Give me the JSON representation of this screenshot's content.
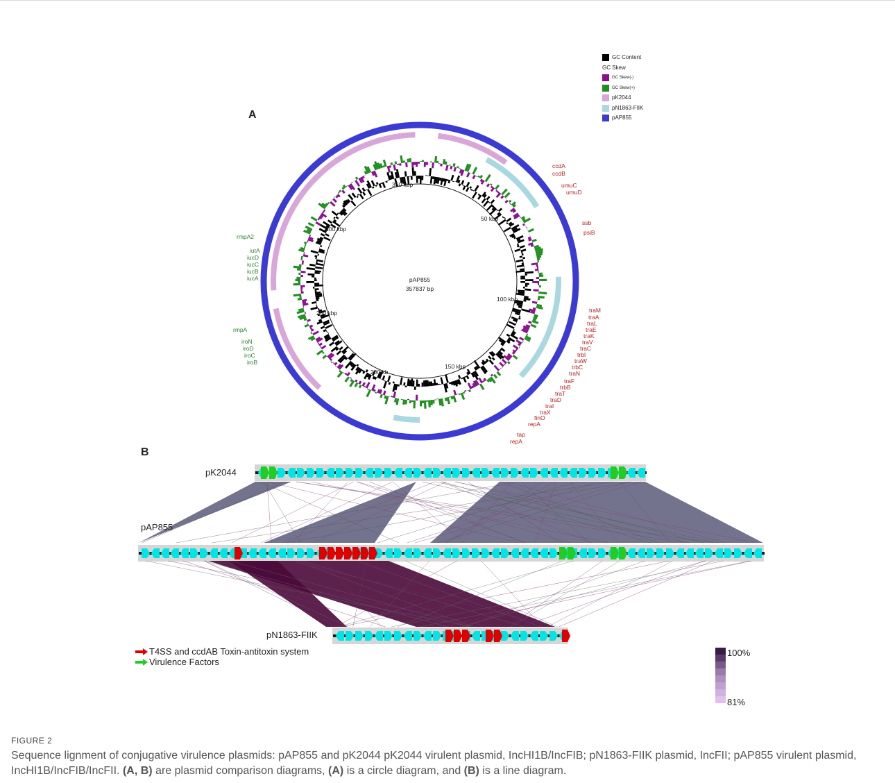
{
  "panel_a": {
    "label": "A",
    "legend": {
      "gc_content": "GC Content",
      "gc_skew_header": "GC Skew",
      "gc_skew_neg": "GC Skew(-)",
      "gc_skew_pos": "GC Skew(+)",
      "pk2044": "pK2044",
      "pn1863": "pN1863-FIIK",
      "pap855": "pAP855"
    },
    "colors": {
      "gc_content": "#000000",
      "gc_skew_neg": "#8b0e8f",
      "gc_skew_pos": "#1f8f1f",
      "pk2044": "#d9a6d9",
      "pn1863": "#a9d8e0",
      "pap855": "#3b3bd4"
    },
    "center_name": "pAP855",
    "center_size": "357837 bp",
    "kbp_labels": [
      "350 kbp",
      "50 kbp",
      "300 kbp",
      "100 kbp",
      "250 kbp",
      "150 kbp",
      "200 kb"
    ],
    "genes_red": [
      "ccdA",
      "ccdB",
      "umuC",
      "umuD",
      "ssb",
      "psiB",
      "traM",
      "traA",
      "traL",
      "traE",
      "traK",
      "traV",
      "traC",
      "trbI",
      "traW",
      "trbC",
      "traN",
      "traF",
      "trbB",
      "traT",
      "traD",
      "traI",
      "traX",
      "finO",
      "repA",
      "tap",
      "repA"
    ],
    "genes_green": [
      "rmpA2",
      "iutA",
      "iucD",
      "iucC",
      "iucB",
      "iucA",
      "rmpA",
      "iroN",
      "iroD",
      "iroC",
      "iroB"
    ]
  },
  "panel_b": {
    "label": "B",
    "plasmids": [
      "pK2044",
      "pAP855",
      "pN1863-FIIK"
    ],
    "key_red": "T4SS and ccdAB Toxin-antitoxin system",
    "key_green": "Virulence Factors",
    "scale_top": "100%",
    "scale_bottom": "81%",
    "colors": {
      "t4ss": "#e00000",
      "virulence": "#22cc22",
      "cds": "#00e5e5",
      "link_top": "#5a5a7a",
      "link_bottom": "#4a0a3a"
    }
  },
  "caption": {
    "title": "FIGURE 2",
    "text_1": "Sequence lignment of conjugative virulence plasmids: pAP855 and pK2044 pK2044 virulent plasmid, IncHI1B/IncFIB; pN1863-FIIK plasmid, IncFII; pAP855 virulent plasmid, IncHI1B/IncFIB/IncFII. ",
    "ref_ab": "(A, B)",
    "text_2": " are plasmid comparison diagrams, ",
    "ref_a": "(A)",
    "text_3": " is a circle diagram, and ",
    "ref_b": "(B)",
    "text_4": " is a line diagram."
  }
}
